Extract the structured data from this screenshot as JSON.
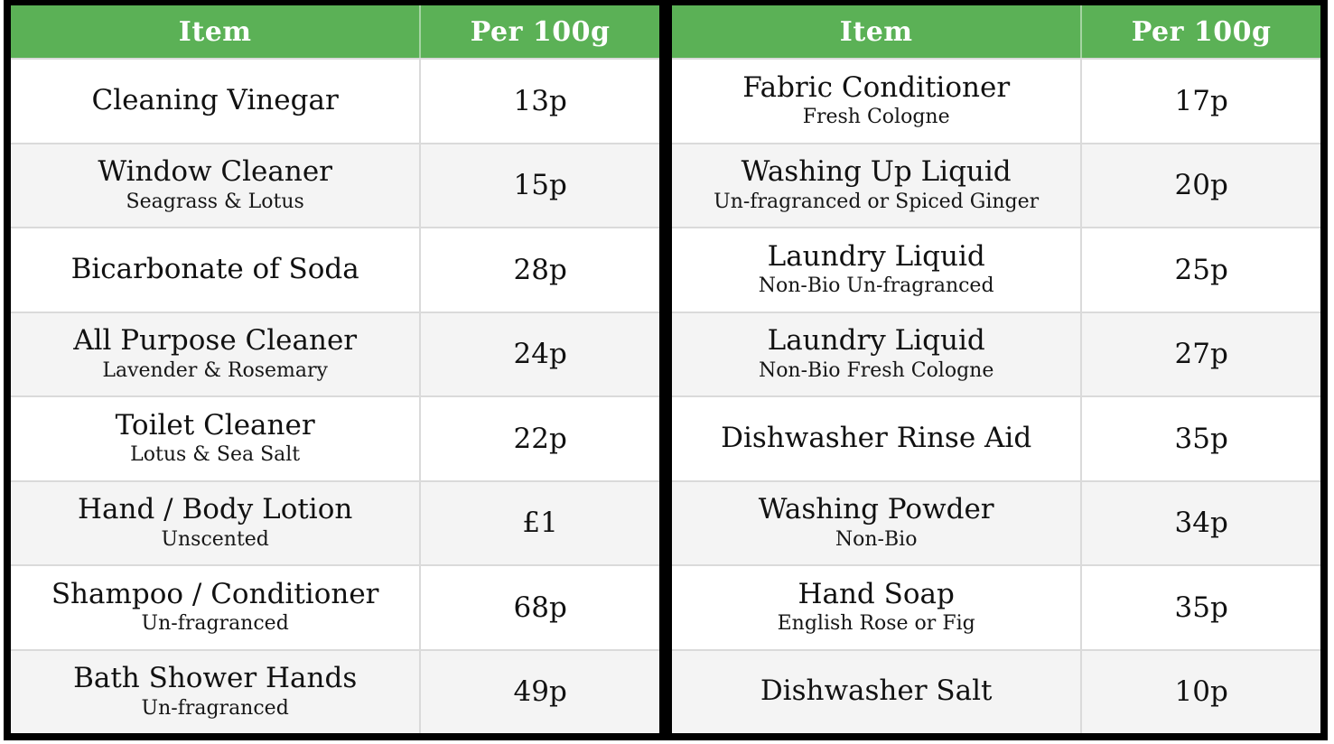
{
  "colors": {
    "header_bg": "#5bb156",
    "header_text": "#ffffff",
    "frame": "#000000",
    "row_alt_bg": "#f4f4f4",
    "row_line": "#dadada"
  },
  "tables": [
    {
      "headers": {
        "item": "Item",
        "price": "Per 100g"
      },
      "rows": [
        {
          "item": "Cleaning Vinegar",
          "variant": "",
          "price": "13p"
        },
        {
          "item": "Window Cleaner",
          "variant": "Seagrass & Lotus",
          "price": "15p"
        },
        {
          "item": "Bicarbonate of Soda",
          "variant": "",
          "price": "28p"
        },
        {
          "item": "All Purpose Cleaner",
          "variant": "Lavender & Rosemary",
          "price": "24p"
        },
        {
          "item": "Toilet Cleaner",
          "variant": "Lotus & Sea Salt",
          "price": "22p"
        },
        {
          "item": "Hand / Body Lotion",
          "variant": "Unscented",
          "price": "£1"
        },
        {
          "item": "Shampoo / Conditioner",
          "variant": "Un-fragranced",
          "price": "68p"
        },
        {
          "item": "Bath Shower Hands",
          "variant": "Un-fragranced",
          "price": "49p"
        }
      ]
    },
    {
      "headers": {
        "item": "Item",
        "price": "Per 100g"
      },
      "rows": [
        {
          "item": "Fabric Conditioner",
          "variant": "Fresh Cologne",
          "price": "17p"
        },
        {
          "item": "Washing Up Liquid",
          "variant": "Un-fragranced or Spiced Ginger",
          "price": "20p"
        },
        {
          "item": "Laundry Liquid",
          "variant": "Non-Bio Un-fragranced",
          "price": "25p"
        },
        {
          "item": "Laundry Liquid",
          "variant": "Non-Bio Fresh Cologne",
          "price": "27p"
        },
        {
          "item": "Dishwasher Rinse Aid",
          "variant": "",
          "price": "35p"
        },
        {
          "item": "Washing Powder",
          "variant": "Non-Bio",
          "price": "34p"
        },
        {
          "item": "Hand Soap",
          "variant": "English Rose or Fig",
          "price": "35p"
        },
        {
          "item": "Dishwasher Salt",
          "variant": "",
          "price": "10p"
        }
      ]
    }
  ]
}
